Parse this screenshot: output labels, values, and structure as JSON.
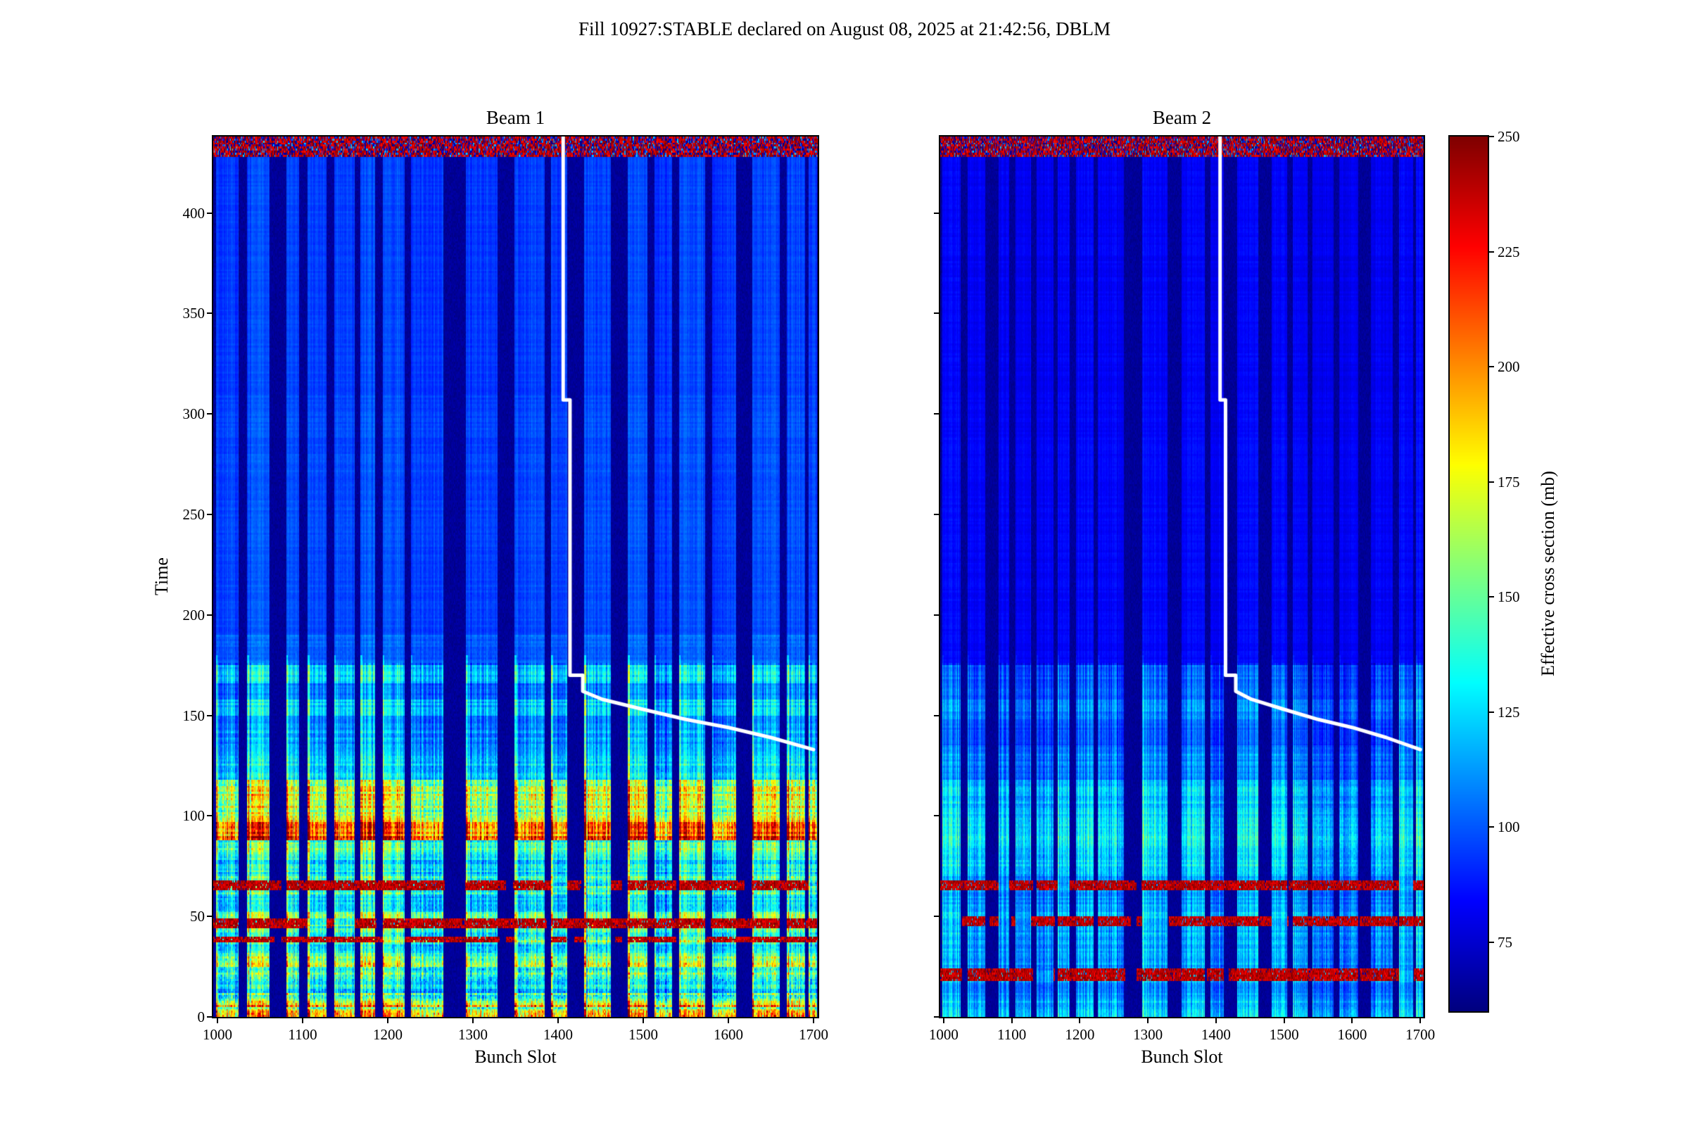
{
  "page": {
    "figure_title": "Fill 10927:STABLE declared on August 08, 2025 at 21:42:56, DBLM"
  },
  "chart_data": {
    "type": "heatmap",
    "title": "Fill 10927:STABLE declared on August 08, 2025 at 21:42:56, DBLM",
    "colormap": "jet",
    "xlabel": "Bunch Slot",
    "ylabel": "Time",
    "x_range": [
      995,
      1705
    ],
    "y_range": [
      0,
      438
    ],
    "x_ticks": [
      1000,
      1100,
      1200,
      1300,
      1400,
      1500,
      1600,
      1700
    ],
    "y_ticks": [
      0,
      50,
      100,
      150,
      200,
      250,
      300,
      350,
      400
    ],
    "colorbar": {
      "label": "Effective cross section (mb)",
      "ticks": [
        250,
        225,
        200,
        175,
        150,
        125,
        100,
        75
      ],
      "vmin": 60,
      "vmax": 250
    },
    "trains": [
      [
        998,
        1024
      ],
      [
        1035,
        1060
      ],
      [
        1081,
        1095
      ],
      [
        1106,
        1127
      ],
      [
        1137,
        1160
      ],
      [
        1168,
        1184
      ],
      [
        1194,
        1219
      ],
      [
        1227,
        1264
      ],
      [
        1292,
        1328
      ],
      [
        1349,
        1383
      ],
      [
        1392,
        1410
      ],
      [
        1431,
        1461
      ],
      [
        1482,
        1504
      ],
      [
        1513,
        1533
      ],
      [
        1542,
        1572
      ],
      [
        1581,
        1608
      ],
      [
        1628,
        1659
      ],
      [
        1669,
        1689
      ],
      [
        1694,
        1703
      ]
    ],
    "noise_band": {
      "t_start": 428,
      "t_end": 438
    },
    "overlay_line": {
      "color": "#ffffff",
      "width": 5,
      "points": [
        [
          1406,
          438
        ],
        [
          1406,
          307
        ],
        [
          1414,
          307
        ],
        [
          1414,
          170
        ],
        [
          1429,
          170
        ],
        [
          1429,
          162
        ],
        [
          1452,
          158
        ],
        [
          1500,
          153
        ],
        [
          1550,
          148
        ],
        [
          1600,
          144
        ],
        [
          1650,
          139
        ],
        [
          1700,
          133
        ]
      ]
    },
    "subplots": [
      {
        "title": "Beam 1",
        "seed": 101,
        "upper_smoothing": 0.35,
        "lead_boost": 1.22,
        "profile": [
          [
            0,
            6,
            172,
            64
          ],
          [
            6,
            12,
            150,
            52
          ],
          [
            12,
            18,
            126,
            34
          ],
          [
            18,
            30,
            148,
            46
          ],
          [
            30,
            36,
            130,
            30
          ],
          [
            36,
            42,
            146,
            40
          ],
          [
            42,
            52,
            140,
            36
          ],
          [
            52,
            60,
            122,
            26
          ],
          [
            60,
            70,
            134,
            34
          ],
          [
            70,
            80,
            128,
            26
          ],
          [
            80,
            88,
            142,
            30
          ],
          [
            88,
            97,
            208,
            44
          ],
          [
            97,
            106,
            162,
            36
          ],
          [
            106,
            118,
            166,
            40
          ],
          [
            118,
            130,
            126,
            20
          ],
          [
            130,
            142,
            112,
            14
          ],
          [
            142,
            150,
            108,
            12
          ],
          [
            150,
            158,
            122,
            14
          ],
          [
            158,
            166,
            104,
            10
          ],
          [
            166,
            175,
            122,
            14
          ],
          [
            175,
            190,
            102,
            8
          ],
          [
            190,
            310,
            97,
            5
          ],
          [
            310,
            428,
            95,
            4
          ]
        ],
        "hot_rows": [
          [
            37,
            40
          ],
          [
            44,
            49
          ],
          [
            63,
            68
          ]
        ]
      },
      {
        "title": "Beam 2",
        "seed": 202,
        "upper_smoothing": 0.3,
        "lead_boost": 1.08,
        "profile": [
          [
            0,
            8,
            116,
            16
          ],
          [
            8,
            16,
            108,
            12
          ],
          [
            16,
            26,
            112,
            14
          ],
          [
            26,
            42,
            112,
            14
          ],
          [
            42,
            52,
            115,
            15
          ],
          [
            52,
            62,
            110,
            12
          ],
          [
            62,
            70,
            112,
            14
          ],
          [
            70,
            85,
            121,
            17
          ],
          [
            85,
            100,
            125,
            17
          ],
          [
            100,
            118,
            118,
            14
          ],
          [
            118,
            135,
            105,
            10
          ],
          [
            135,
            148,
            96,
            8
          ],
          [
            148,
            158,
            105,
            10
          ],
          [
            158,
            175,
            98,
            8
          ],
          [
            175,
            310,
            83,
            4
          ],
          [
            310,
            428,
            82,
            4
          ]
        ],
        "hot_rows": [
          [
            18,
            24
          ],
          [
            45,
            50
          ],
          [
            63,
            68
          ]
        ]
      }
    ]
  }
}
